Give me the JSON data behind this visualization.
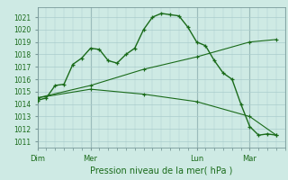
{
  "bg_color": "#ceeae4",
  "grid_color": "#aacccc",
  "line_color": "#1a6b1a",
  "ylabel_vals": [
    1011,
    1012,
    1013,
    1014,
    1015,
    1016,
    1017,
    1018,
    1019,
    1020,
    1021
  ],
  "ylim": [
    1010.5,
    1021.8
  ],
  "xlabel": "Pression niveau de la mer( hPa )",
  "xtick_labels": [
    "Dim",
    "Mer",
    "Lun",
    "Mar"
  ],
  "xtick_positions": [
    0,
    6,
    18,
    24
  ],
  "xlim": [
    0,
    28
  ],
  "series1_x": [
    0,
    1,
    2,
    3,
    4,
    5,
    6,
    7,
    8,
    9,
    10,
    11,
    12,
    13,
    14,
    15,
    16,
    17,
    18,
    19,
    20,
    21,
    22,
    23,
    24,
    25,
    26,
    27
  ],
  "series1_y": [
    1014.3,
    1014.5,
    1015.5,
    1015.6,
    1017.2,
    1017.7,
    1018.5,
    1018.4,
    1017.5,
    1017.3,
    1018.0,
    1018.5,
    1020.0,
    1021.0,
    1021.3,
    1021.2,
    1021.1,
    1020.2,
    1019.0,
    1018.7,
    1017.5,
    1016.5,
    1016.0,
    1014.0,
    1012.2,
    1011.5,
    1011.6,
    1011.5
  ],
  "series2_x": [
    0,
    6,
    12,
    18,
    24,
    27
  ],
  "series2_y": [
    1014.5,
    1015.5,
    1016.8,
    1017.8,
    1019.0,
    1019.2
  ],
  "series3_x": [
    0,
    6,
    12,
    18,
    24,
    27
  ],
  "series3_y": [
    1014.5,
    1015.2,
    1014.8,
    1014.2,
    1013.0,
    1011.5
  ],
  "vline_positions": [
    0,
    6,
    18,
    24
  ]
}
